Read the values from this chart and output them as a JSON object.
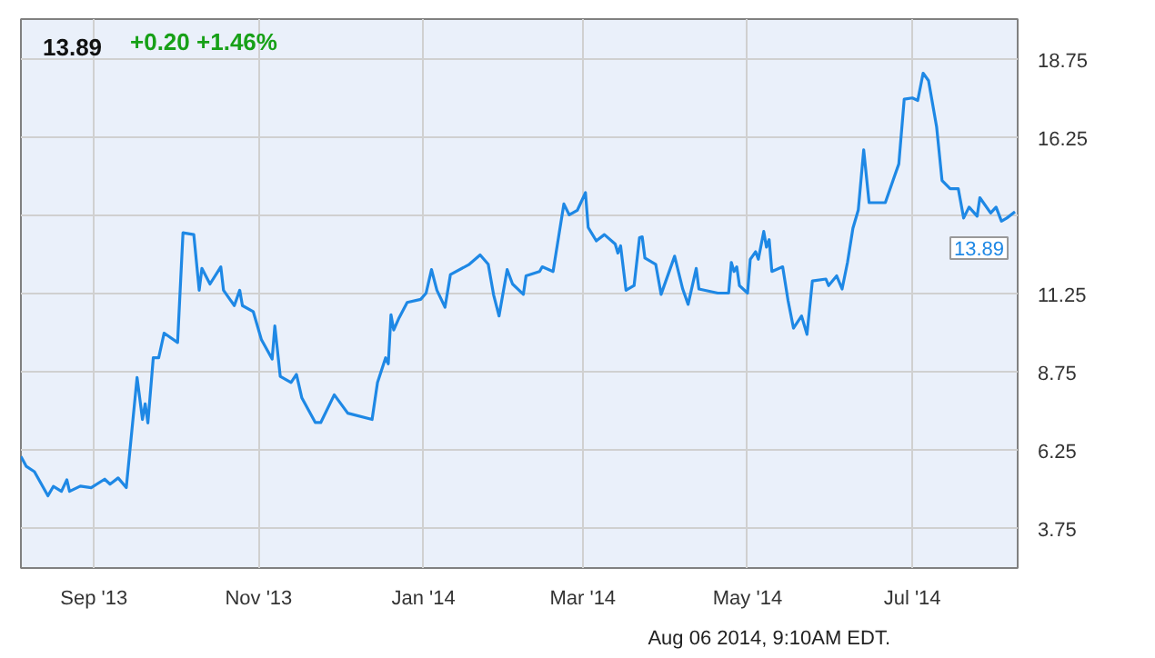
{
  "chart_data": {
    "type": "line",
    "title": "13.89",
    "subtitle": "+0.20  +1.46%",
    "annotations": [
      {
        "text": "13.89",
        "x": "2014-08-08",
        "y": 13.89
      },
      "Aug 06 2014, 9:10AM EDT."
    ],
    "x": [
      "2013-08-05",
      "2013-08-07",
      "2013-08-10",
      "2013-08-15",
      "2013-08-17",
      "2013-08-20",
      "2013-08-22",
      "2013-08-23",
      "2013-08-27",
      "2013-08-31",
      "2013-09-05",
      "2013-09-07",
      "2013-09-10",
      "2013-09-13",
      "2013-09-17",
      "2013-09-19",
      "2013-09-20",
      "2013-09-21",
      "2013-09-23",
      "2013-09-25",
      "2013-09-27",
      "2013-10-02",
      "2013-10-04",
      "2013-10-08",
      "2013-10-10",
      "2013-10-11",
      "2013-10-14",
      "2013-10-18",
      "2013-10-19",
      "2013-10-23",
      "2013-10-25",
      "2013-10-26",
      "2013-10-30",
      "2013-11-02",
      "2013-11-06",
      "2013-11-07",
      "2013-11-09",
      "2013-11-13",
      "2013-11-15",
      "2013-11-17",
      "2013-11-22",
      "2013-11-24",
      "2013-11-29",
      "2013-12-04",
      "2013-12-13",
      "2013-12-15",
      "2013-12-18",
      "2013-12-19",
      "2013-12-20",
      "2013-12-21",
      "2013-12-23",
      "2013-12-26",
      "2013-12-31",
      "2014-01-02",
      "2014-01-04",
      "2014-01-06",
      "2014-01-09",
      "2014-01-11",
      "2014-01-18",
      "2014-01-22",
      "2014-01-25",
      "2014-01-27",
      "2014-01-29",
      "2014-02-01",
      "2014-02-03",
      "2014-02-07",
      "2014-02-08",
      "2014-02-13",
      "2014-02-14",
      "2014-02-18",
      "2014-02-22",
      "2014-02-24",
      "2014-02-27",
      "2014-03-02",
      "2014-03-03",
      "2014-03-06",
      "2014-03-09",
      "2014-03-13",
      "2014-03-14",
      "2014-03-15",
      "2014-03-17",
      "2014-03-20",
      "2014-03-22",
      "2014-03-23",
      "2014-03-24",
      "2014-03-28",
      "2014-03-30",
      "2014-04-04",
      "2014-04-07",
      "2014-04-09",
      "2014-04-12",
      "2014-04-13",
      "2014-04-20",
      "2014-04-24",
      "2014-04-25",
      "2014-04-26",
      "2014-04-27",
      "2014-04-28",
      "2014-05-01",
      "2014-05-02",
      "2014-05-04",
      "2014-05-05",
      "2014-05-07",
      "2014-05-08",
      "2014-05-09",
      "2014-05-10",
      "2014-05-14",
      "2014-05-16",
      "2014-05-18",
      "2014-05-21",
      "2014-05-23",
      "2014-05-25",
      "2014-05-30",
      "2014-05-31",
      "2014-06-03",
      "2014-06-05",
      "2014-06-07",
      "2014-06-09",
      "2014-06-11",
      "2014-06-13",
      "2014-06-15",
      "2014-06-21",
      "2014-06-24",
      "2014-06-26",
      "2014-06-28",
      "2014-07-01",
      "2014-07-03",
      "2014-07-05",
      "2014-07-07",
      "2014-07-10",
      "2014-07-12",
      "2014-07-15",
      "2014-07-18",
      "2014-07-20",
      "2014-07-22",
      "2014-07-25",
      "2014-07-26",
      "2014-07-30",
      "2014-08-01",
      "2014-08-03",
      "2014-08-05",
      "2014-08-08"
    ],
    "series": [
      {
        "color": "#1e88e5",
        "values": [
          6.07,
          5.75,
          5.58,
          4.81,
          5.11,
          4.95,
          5.32,
          4.95,
          5.12,
          5.07,
          5.34,
          5.18,
          5.38,
          5.07,
          8.59,
          7.25,
          7.75,
          7.14,
          9.22,
          9.22,
          10.01,
          9.71,
          13.22,
          13.16,
          11.38,
          12.08,
          11.58,
          12.13,
          11.38,
          10.89,
          11.38,
          10.89,
          10.7,
          9.81,
          9.18,
          10.24,
          8.63,
          8.43,
          8.69,
          7.94,
          7.15,
          7.15,
          8.04,
          7.45,
          7.25,
          8.43,
          9.22,
          9.03,
          10.6,
          10.11,
          10.5,
          10.99,
          11.09,
          11.29,
          12.04,
          11.38,
          10.84,
          11.88,
          12.21,
          12.51,
          12.21,
          11.23,
          10.56,
          12.04,
          11.58,
          11.25,
          11.84,
          11.98,
          12.13,
          11.98,
          14.14,
          13.79,
          13.94,
          14.5,
          13.39,
          12.96,
          13.16,
          12.86,
          12.57,
          12.8,
          11.38,
          11.53,
          13.06,
          13.09,
          12.41,
          12.21,
          11.25,
          12.47,
          11.42,
          10.93,
          12.08,
          11.42,
          11.29,
          11.29,
          12.27,
          11.98,
          12.13,
          11.53,
          11.29,
          12.37,
          12.61,
          12.37,
          13.26,
          12.76,
          13.0,
          11.98,
          12.13,
          11.05,
          10.17,
          10.56,
          9.97,
          11.68,
          11.74,
          11.53,
          11.84,
          11.42,
          12.27,
          13.36,
          13.95,
          15.87,
          14.18,
          14.18,
          14.93,
          15.42,
          17.49,
          17.53,
          17.45,
          18.32,
          18.08,
          16.6,
          14.89,
          14.63,
          14.63,
          13.69,
          14.04,
          13.75,
          14.34,
          13.85,
          14.04,
          13.59,
          13.69,
          13.89
        ]
      }
    ],
    "xlim": [
      "2013-08-05",
      "2014-08-09"
    ],
    "ylim": [
      2.5,
      20.05
    ],
    "xticks": [
      {
        "value": "2013-09-01",
        "label": "Sep '13"
      },
      {
        "value": "2013-11-01",
        "label": "Nov '13"
      },
      {
        "value": "2014-01-01",
        "label": "Jan '14"
      },
      {
        "value": "2014-03-01",
        "label": "Mar '14"
      },
      {
        "value": "2014-05-01",
        "label": "May '14"
      },
      {
        "value": "2014-07-01",
        "label": "Jul '14"
      }
    ],
    "yticks": [
      3.75,
      6.25,
      8.75,
      11.25,
      {
        "value": 13.75,
        "label": null
      },
      16.25,
      18.75
    ],
    "grid": true
  }
}
